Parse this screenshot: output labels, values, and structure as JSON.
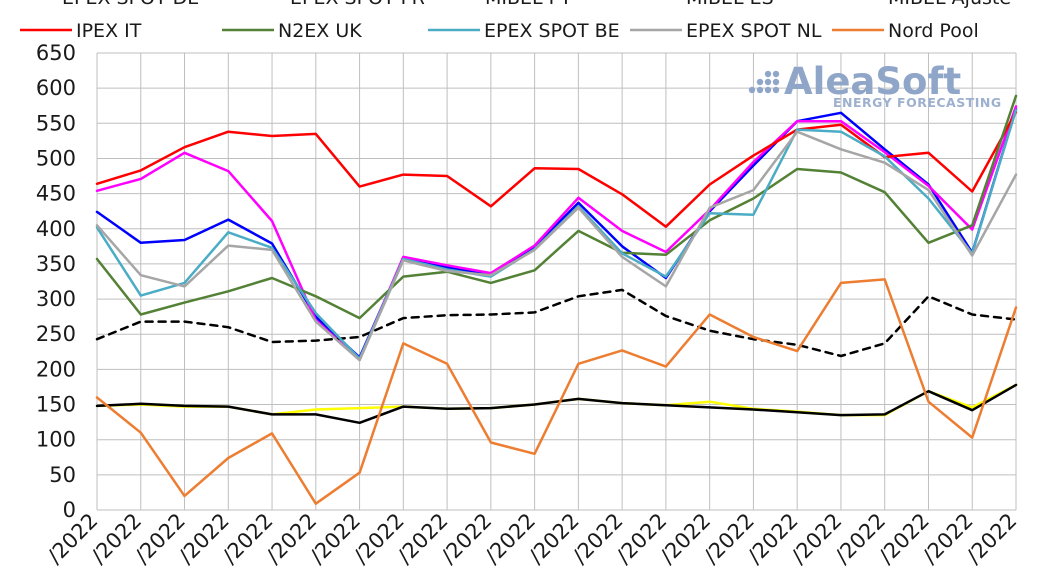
{
  "logo": {
    "name": "AleaSoft",
    "tagline": "ENERGY FORECASTING"
  },
  "chart_data": {
    "type": "line",
    "title": "",
    "xlabel": "",
    "ylabel": "",
    "ylim": [
      0,
      650
    ],
    "ytick_step": 50,
    "grid": true,
    "legend_position": "top",
    "categories": [
      "/2022",
      "/2022",
      "/2022",
      "/2022",
      "/2022",
      "/2022",
      "/2022",
      "/2022",
      "/2022",
      "/2022",
      "/2022",
      "/2022",
      "/2022",
      "/2022",
      "/2022",
      "/2022",
      "/2022",
      "/2022",
      "/2022",
      "/2022",
      "/2022",
      "/2022"
    ],
    "legend_top_partial": [
      "EPEX SPOT DE",
      "EPEX SPOT FR",
      "MIBEL PT",
      "MIBEL ES",
      "MIBEL Ajuste"
    ],
    "legend_visible": [
      "IPEX IT",
      "N2EX UK",
      "EPEX SPOT BE",
      "EPEX SPOT NL",
      "Nord Pool"
    ],
    "series": [
      {
        "name": "",
        "color": "#0000ff",
        "dash": "",
        "width": 2.5,
        "values": [
          424,
          380,
          384,
          413,
          379,
          275,
          217,
          358,
          345,
          335,
          374,
          437,
          375,
          330,
          425,
          490,
          553,
          565,
          513,
          463,
          366,
          570
        ]
      },
      {
        "name": "",
        "color": "#ff00ff",
        "dash": "",
        "width": 2.5,
        "values": [
          454,
          471,
          508,
          482,
          411,
          270,
          214,
          360,
          348,
          337,
          376,
          444,
          397,
          367,
          427,
          495,
          553,
          553,
          509,
          461,
          399,
          574
        ]
      },
      {
        "name": "",
        "color": "#ffff00",
        "dash": "",
        "width": 2.5,
        "values": [
          148,
          150,
          147,
          147,
          136,
          143,
          145,
          147,
          144,
          145,
          150,
          158,
          152,
          149,
          154,
          144,
          140,
          135,
          135,
          169,
          146,
          178
        ]
      },
      {
        "name": "",
        "color": "#000000",
        "dash": "",
        "width": 2.5,
        "values": [
          148,
          151,
          148,
          147,
          136,
          136,
          124,
          147,
          144,
          145,
          150,
          158,
          152,
          149,
          146,
          143,
          139,
          135,
          136,
          169,
          142,
          178
        ]
      },
      {
        "name": "",
        "color": "#000000",
        "dash": "7,6",
        "width": 2.5,
        "values": [
          243,
          268,
          268,
          260,
          239,
          241,
          246,
          273,
          277,
          278,
          281,
          304,
          313,
          276,
          255,
          243,
          235,
          219,
          237,
          304,
          278,
          271
        ]
      },
      {
        "name": "IPEX IT",
        "color": "#ff0000",
        "dash": "",
        "width": 2.5,
        "values": [
          464,
          483,
          516,
          538,
          532,
          535,
          460,
          477,
          475,
          432,
          486,
          485,
          449,
          403,
          463,
          504,
          541,
          548,
          502,
          508,
          453,
          566
        ]
      },
      {
        "name": "N2EX UK",
        "color": "#538135",
        "dash": "",
        "width": 2.5,
        "values": [
          357,
          278,
          295,
          311,
          330,
          304,
          273,
          332,
          339,
          323,
          341,
          397,
          366,
          363,
          412,
          443,
          485,
          480,
          452,
          380,
          405,
          589
        ]
      },
      {
        "name": "EPEX SPOT BE",
        "color": "#4bacc6",
        "dash": "",
        "width": 2.5,
        "values": [
          402,
          305,
          323,
          395,
          373,
          280,
          215,
          357,
          342,
          332,
          371,
          432,
          365,
          332,
          422,
          420,
          541,
          538,
          503,
          443,
          365,
          569
        ]
      },
      {
        "name": "EPEX SPOT NL",
        "color": "#a6a6a6",
        "dash": "",
        "width": 2.5,
        "values": [
          405,
          334,
          318,
          376,
          370,
          268,
          213,
          355,
          340,
          334,
          370,
          430,
          360,
          318,
          430,
          455,
          538,
          513,
          494,
          455,
          362,
          477
        ]
      },
      {
        "name": "Nord Pool",
        "color": "#ed7d31",
        "dash": "",
        "width": 2.5,
        "values": [
          160,
          110,
          20,
          74,
          109,
          9,
          53,
          237,
          208,
          96,
          80,
          208,
          227,
          204,
          278,
          246,
          226,
          323,
          328,
          154,
          103,
          288
        ]
      }
    ]
  }
}
